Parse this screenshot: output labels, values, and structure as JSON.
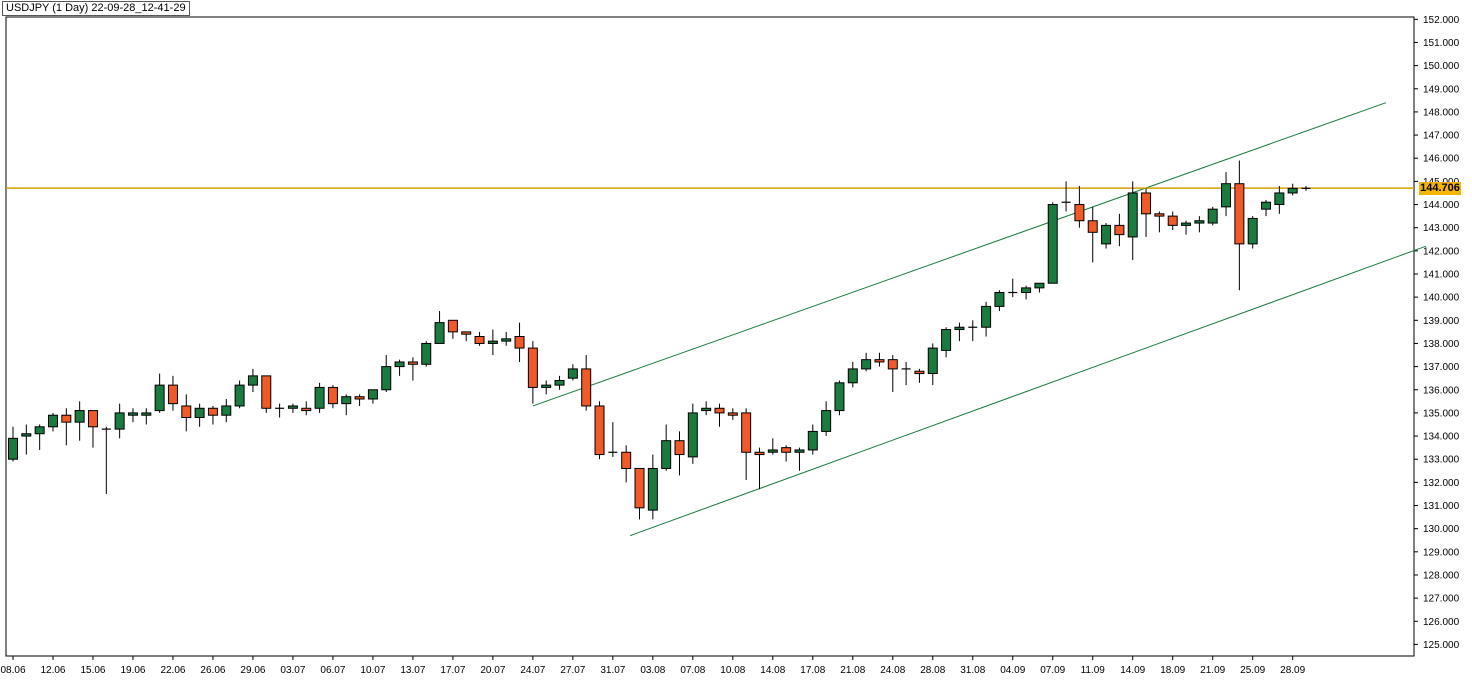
{
  "header": {
    "title": "USDJPY (1 Day) 22-09-28_12-41-29"
  },
  "chart_data": {
    "type": "candlestick",
    "symbol": "USDJPY",
    "timeframe": "1 Day",
    "ylim": [
      124.5,
      152.1
    ],
    "yticks": [
      125,
      126,
      127,
      128,
      129,
      130,
      131,
      132,
      133,
      134,
      135,
      136,
      137,
      138,
      139,
      140,
      141,
      142,
      143,
      144,
      145,
      146,
      147,
      148,
      149,
      150,
      151,
      152
    ],
    "xtick_labels": [
      "08.06",
      "12.06",
      "15.06",
      "19.06",
      "22.06",
      "26.06",
      "29.06",
      "03.07",
      "06.07",
      "10.07",
      "13.07",
      "17.07",
      "20.07",
      "24.07",
      "27.07",
      "31.07",
      "03.08",
      "07.08",
      "10.08",
      "14.08",
      "17.08",
      "21.08",
      "24.08",
      "28.08",
      "31.08",
      "04.09",
      "07.09",
      "11.09",
      "14.09",
      "18.09",
      "21.09",
      "25.09",
      "28.09"
    ],
    "current_price": 144.706,
    "current_price_label": "144.706",
    "colors": {
      "up": "#1a7a40",
      "down": "#f05a28",
      "price_line": "#d4a000",
      "channel": "#1a7a40",
      "price_tag": "#f4b400"
    },
    "candles": [
      {
        "o": 133.0,
        "h": 134.4,
        "l": 132.9,
        "c": 133.9
      },
      {
        "o": 134.0,
        "h": 134.5,
        "l": 133.2,
        "c": 134.1
      },
      {
        "o": 134.1,
        "h": 134.5,
        "l": 133.4,
        "c": 134.4
      },
      {
        "o": 134.4,
        "h": 135.0,
        "l": 134.2,
        "c": 134.9
      },
      {
        "o": 134.9,
        "h": 135.2,
        "l": 133.6,
        "c": 134.6
      },
      {
        "o": 134.6,
        "h": 135.5,
        "l": 133.8,
        "c": 135.1
      },
      {
        "o": 135.1,
        "h": 135.1,
        "l": 133.5,
        "c": 134.4
      },
      {
        "o": 134.3,
        "h": 134.4,
        "l": 131.5,
        "c": 134.3
      },
      {
        "o": 134.3,
        "h": 135.4,
        "l": 133.9,
        "c": 135.0
      },
      {
        "o": 134.9,
        "h": 135.2,
        "l": 134.6,
        "c": 135.0
      },
      {
        "o": 134.9,
        "h": 135.2,
        "l": 134.5,
        "c": 135.0
      },
      {
        "o": 135.1,
        "h": 136.7,
        "l": 135.0,
        "c": 136.2
      },
      {
        "o": 136.2,
        "h": 136.6,
        "l": 135.1,
        "c": 135.4
      },
      {
        "o": 135.3,
        "h": 135.8,
        "l": 134.2,
        "c": 134.8
      },
      {
        "o": 134.8,
        "h": 135.4,
        "l": 134.4,
        "c": 135.2
      },
      {
        "o": 135.2,
        "h": 135.3,
        "l": 134.5,
        "c": 134.9
      },
      {
        "o": 134.9,
        "h": 135.6,
        "l": 134.6,
        "c": 135.3
      },
      {
        "o": 135.3,
        "h": 136.4,
        "l": 135.2,
        "c": 136.2
      },
      {
        "o": 136.2,
        "h": 136.9,
        "l": 135.9,
        "c": 136.6
      },
      {
        "o": 136.6,
        "h": 136.6,
        "l": 135.0,
        "c": 135.2
      },
      {
        "o": 135.2,
        "h": 135.4,
        "l": 134.8,
        "c": 135.2
      },
      {
        "o": 135.2,
        "h": 135.4,
        "l": 135.0,
        "c": 135.3
      },
      {
        "o": 135.2,
        "h": 135.5,
        "l": 134.9,
        "c": 135.1
      },
      {
        "o": 135.2,
        "h": 136.3,
        "l": 135.0,
        "c": 136.1
      },
      {
        "o": 136.1,
        "h": 136.2,
        "l": 135.2,
        "c": 135.4
      },
      {
        "o": 135.4,
        "h": 135.8,
        "l": 134.9,
        "c": 135.7
      },
      {
        "o": 135.7,
        "h": 135.8,
        "l": 135.3,
        "c": 135.6
      },
      {
        "o": 135.6,
        "h": 136.0,
        "l": 135.4,
        "c": 136.0
      },
      {
        "o": 136.0,
        "h": 137.5,
        "l": 135.9,
        "c": 137.0
      },
      {
        "o": 137.0,
        "h": 137.3,
        "l": 136.6,
        "c": 137.2
      },
      {
        "o": 137.2,
        "h": 137.4,
        "l": 136.4,
        "c": 137.1
      },
      {
        "o": 137.1,
        "h": 138.1,
        "l": 137.0,
        "c": 138.0
      },
      {
        "o": 138.0,
        "h": 139.4,
        "l": 138.0,
        "c": 138.9
      },
      {
        "o": 139.0,
        "h": 139.0,
        "l": 138.2,
        "c": 138.5
      },
      {
        "o": 138.5,
        "h": 138.5,
        "l": 138.1,
        "c": 138.4
      },
      {
        "o": 138.3,
        "h": 138.5,
        "l": 137.9,
        "c": 138.0
      },
      {
        "o": 138.0,
        "h": 138.6,
        "l": 137.5,
        "c": 138.1
      },
      {
        "o": 138.1,
        "h": 138.5,
        "l": 137.9,
        "c": 138.2
      },
      {
        "o": 138.3,
        "h": 138.9,
        "l": 137.2,
        "c": 137.8
      },
      {
        "o": 137.8,
        "h": 138.1,
        "l": 135.4,
        "c": 136.1
      },
      {
        "o": 136.1,
        "h": 136.4,
        "l": 135.8,
        "c": 136.2
      },
      {
        "o": 136.2,
        "h": 136.6,
        "l": 136.0,
        "c": 136.4
      },
      {
        "o": 136.5,
        "h": 137.1,
        "l": 136.4,
        "c": 136.9
      },
      {
        "o": 136.9,
        "h": 137.5,
        "l": 135.1,
        "c": 135.3
      },
      {
        "o": 135.3,
        "h": 135.5,
        "l": 133.0,
        "c": 133.2
      },
      {
        "o": 133.3,
        "h": 134.6,
        "l": 133.1,
        "c": 133.3
      },
      {
        "o": 133.3,
        "h": 133.6,
        "l": 132.0,
        "c": 132.6
      },
      {
        "o": 132.6,
        "h": 132.6,
        "l": 130.4,
        "c": 130.9
      },
      {
        "o": 130.8,
        "h": 133.2,
        "l": 130.4,
        "c": 132.6
      },
      {
        "o": 132.6,
        "h": 134.5,
        "l": 132.5,
        "c": 133.8
      },
      {
        "o": 133.8,
        "h": 134.2,
        "l": 132.3,
        "c": 133.2
      },
      {
        "o": 133.1,
        "h": 135.4,
        "l": 132.8,
        "c": 135.0
      },
      {
        "o": 135.1,
        "h": 135.5,
        "l": 134.9,
        "c": 135.2
      },
      {
        "o": 135.2,
        "h": 135.4,
        "l": 134.4,
        "c": 135.0
      },
      {
        "o": 135.0,
        "h": 135.2,
        "l": 134.7,
        "c": 134.9
      },
      {
        "o": 135.0,
        "h": 135.2,
        "l": 132.1,
        "c": 133.3
      },
      {
        "o": 133.3,
        "h": 133.5,
        "l": 131.7,
        "c": 133.2
      },
      {
        "o": 133.3,
        "h": 133.9,
        "l": 133.2,
        "c": 133.4
      },
      {
        "o": 133.5,
        "h": 133.6,
        "l": 132.9,
        "c": 133.3
      },
      {
        "o": 133.3,
        "h": 133.5,
        "l": 132.5,
        "c": 133.4
      },
      {
        "o": 133.4,
        "h": 134.5,
        "l": 133.2,
        "c": 134.2
      },
      {
        "o": 134.2,
        "h": 135.5,
        "l": 134.0,
        "c": 135.1
      },
      {
        "o": 135.1,
        "h": 136.4,
        "l": 134.9,
        "c": 136.3
      },
      {
        "o": 136.3,
        "h": 137.2,
        "l": 136.1,
        "c": 136.9
      },
      {
        "o": 136.9,
        "h": 137.6,
        "l": 136.8,
        "c": 137.3
      },
      {
        "o": 137.3,
        "h": 137.6,
        "l": 137.0,
        "c": 137.2
      },
      {
        "o": 137.3,
        "h": 137.5,
        "l": 135.9,
        "c": 136.9
      },
      {
        "o": 136.9,
        "h": 137.2,
        "l": 136.2,
        "c": 136.9
      },
      {
        "o": 136.8,
        "h": 136.9,
        "l": 136.3,
        "c": 136.7
      },
      {
        "o": 136.7,
        "h": 138.0,
        "l": 136.2,
        "c": 137.8
      },
      {
        "o": 137.7,
        "h": 138.7,
        "l": 137.4,
        "c": 138.6
      },
      {
        "o": 138.6,
        "h": 138.9,
        "l": 138.1,
        "c": 138.7
      },
      {
        "o": 138.7,
        "h": 139.0,
        "l": 138.1,
        "c": 138.7
      },
      {
        "o": 138.7,
        "h": 139.8,
        "l": 138.3,
        "c": 139.6
      },
      {
        "o": 139.6,
        "h": 140.3,
        "l": 139.4,
        "c": 140.2
      },
      {
        "o": 140.2,
        "h": 140.8,
        "l": 140.0,
        "c": 140.2
      },
      {
        "o": 140.2,
        "h": 140.5,
        "l": 139.9,
        "c": 140.4
      },
      {
        "o": 140.4,
        "h": 140.6,
        "l": 140.2,
        "c": 140.6
      },
      {
        "o": 140.6,
        "h": 144.1,
        "l": 140.6,
        "c": 144.0
      },
      {
        "o": 144.1,
        "h": 145.0,
        "l": 143.7,
        "c": 144.1
      },
      {
        "o": 144.0,
        "h": 144.8,
        "l": 143.0,
        "c": 143.3
      },
      {
        "o": 143.3,
        "h": 143.9,
        "l": 141.5,
        "c": 142.8
      },
      {
        "o": 142.3,
        "h": 143.2,
        "l": 142.1,
        "c": 143.1
      },
      {
        "o": 143.1,
        "h": 143.6,
        "l": 142.2,
        "c": 142.7
      },
      {
        "o": 142.6,
        "h": 145.0,
        "l": 141.6,
        "c": 144.5
      },
      {
        "o": 144.5,
        "h": 144.7,
        "l": 142.6,
        "c": 143.6
      },
      {
        "o": 143.6,
        "h": 143.7,
        "l": 142.8,
        "c": 143.5
      },
      {
        "o": 143.5,
        "h": 143.7,
        "l": 142.9,
        "c": 143.1
      },
      {
        "o": 143.1,
        "h": 143.3,
        "l": 142.7,
        "c": 143.2
      },
      {
        "o": 143.2,
        "h": 143.5,
        "l": 142.8,
        "c": 143.3
      },
      {
        "o": 143.2,
        "h": 143.9,
        "l": 143.1,
        "c": 143.8
      },
      {
        "o": 143.9,
        "h": 145.4,
        "l": 143.5,
        "c": 144.9
      },
      {
        "o": 144.9,
        "h": 145.9,
        "l": 140.3,
        "c": 142.3
      },
      {
        "o": 142.3,
        "h": 143.5,
        "l": 142.1,
        "c": 143.4
      },
      {
        "o": 143.8,
        "h": 144.2,
        "l": 143.5,
        "c": 144.1
      },
      {
        "o": 144.0,
        "h": 144.8,
        "l": 143.6,
        "c": 144.5
      },
      {
        "o": 144.5,
        "h": 144.9,
        "l": 144.4,
        "c": 144.7
      },
      {
        "o": 144.7,
        "h": 144.8,
        "l": 144.6,
        "c": 144.7
      }
    ],
    "channel_lines": [
      {
        "name": "upper",
        "x1": 39,
        "y1": 135.3,
        "x2": 103,
        "y2": 148.4
      },
      {
        "name": "lower",
        "x1": 46.3,
        "y1": 129.7,
        "x2": 106,
        "y2": 142.2
      }
    ]
  }
}
